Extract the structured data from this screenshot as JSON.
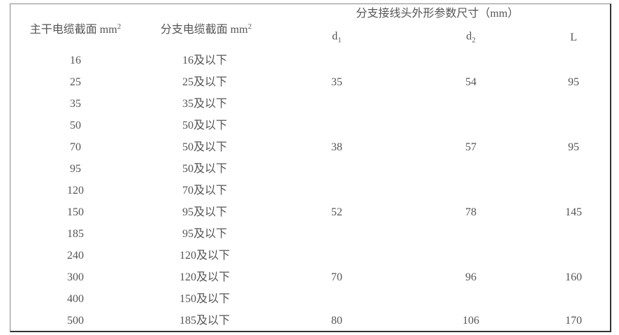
{
  "header": {
    "main_cable": "主干电缆截面 mm",
    "branch_cable": "分支电缆截面 mm",
    "squared": "2",
    "connector_dims": "分支接线头外形参数尺寸（mm）",
    "d1": "d",
    "d1_sub": "1",
    "d2": "d",
    "d2_sub": "2",
    "L": "L"
  },
  "rows": [
    {
      "main": "16",
      "branch": "16及以下"
    },
    {
      "main": "25",
      "branch": "25及以下"
    },
    {
      "main": "35",
      "branch": "35及以下"
    },
    {
      "main": "50",
      "branch": "50及以下"
    },
    {
      "main": "70",
      "branch": "50及以下"
    },
    {
      "main": "95",
      "branch": "50及以下"
    },
    {
      "main": "120",
      "branch": "70及以下"
    },
    {
      "main": "150",
      "branch": "95及以下"
    },
    {
      "main": "185",
      "branch": "95及以下"
    },
    {
      "main": "240",
      "branch": "120及以下"
    },
    {
      "main": "300",
      "branch": "120及以下"
    },
    {
      "main": "400",
      "branch": "150及以下"
    },
    {
      "main": "500",
      "branch": "185及以下"
    }
  ],
  "dims": [
    {
      "d1": "35",
      "d2": "54",
      "L": "95"
    },
    {
      "d1": "38",
      "d2": "57",
      "L": "95"
    },
    {
      "d1": "52",
      "d2": "78",
      "L": "145"
    },
    {
      "d1": "70",
      "d2": "96",
      "L": "160"
    },
    {
      "d1": "80",
      "d2": "106",
      "L": "170"
    }
  ]
}
